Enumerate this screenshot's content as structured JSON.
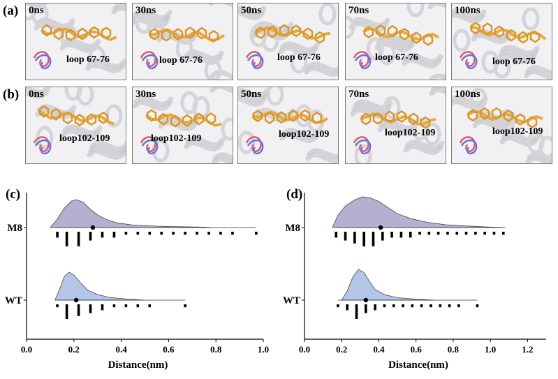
{
  "panels": {
    "a": "(a)",
    "b": "(b)",
    "c": "(c)",
    "d": "(d)"
  },
  "snapshots": {
    "row_a": {
      "loop_label": "loop 67-76",
      "times": [
        "0ns",
        "30ns",
        "50ns",
        "70ns",
        "100ns"
      ]
    },
    "row_b": {
      "loop_label": "loop102-109",
      "times": [
        "0ns",
        "30ns",
        "50ns",
        "70ns",
        "100ns"
      ]
    }
  },
  "colors": {
    "m8_fill": "#b7afd0",
    "wt_fill": "#b3c6e8",
    "ligand": "#e8a93c",
    "loop_red": "#e05a6a",
    "loop_blue": "#6a74d8"
  },
  "chart_data": [
    {
      "type": "violin-raincloud",
      "panel": "(c)",
      "xlabel": "Distance(nm)",
      "xlim": [
        0.0,
        1.0
      ],
      "xticks": [
        "0.0",
        "0.2",
        "0.4",
        "0.6",
        "0.8",
        "1.0"
      ],
      "categories": [
        "M8",
        "WT"
      ],
      "series": [
        {
          "name": "M8",
          "mean": 0.28,
          "min": 0.12,
          "max": 0.97,
          "density": [
            [
              0.1,
              0.0
            ],
            [
              0.13,
              0.3
            ],
            [
              0.16,
              0.7
            ],
            [
              0.19,
              0.95
            ],
            [
              0.21,
              1.0
            ],
            [
              0.24,
              0.9
            ],
            [
              0.27,
              0.65
            ],
            [
              0.3,
              0.45
            ],
            [
              0.34,
              0.28
            ],
            [
              0.38,
              0.17
            ],
            [
              0.45,
              0.09
            ],
            [
              0.55,
              0.05
            ],
            [
              0.65,
              0.03
            ],
            [
              0.75,
              0.015
            ],
            [
              0.78,
              0.0
            ]
          ],
          "points": [
            [
              0.13,
              2
            ],
            [
              0.17,
              5
            ],
            [
              0.22,
              5
            ],
            [
              0.27,
              3
            ],
            [
              0.32,
              2
            ],
            [
              0.37,
              2
            ],
            [
              0.42,
              1
            ],
            [
              0.47,
              1
            ],
            [
              0.52,
              1
            ],
            [
              0.57,
              1
            ],
            [
              0.62,
              1
            ],
            [
              0.67,
              1
            ],
            [
              0.72,
              1
            ],
            [
              0.77,
              1
            ],
            [
              0.82,
              1
            ],
            [
              0.87,
              1
            ],
            [
              0.97,
              1
            ]
          ]
        },
        {
          "name": "WT",
          "mean": 0.21,
          "min": 0.13,
          "max": 0.67,
          "density": [
            [
              0.12,
              0.0
            ],
            [
              0.14,
              0.4
            ],
            [
              0.16,
              0.85
            ],
            [
              0.18,
              1.0
            ],
            [
              0.2,
              0.9
            ],
            [
              0.23,
              0.6
            ],
            [
              0.26,
              0.35
            ],
            [
              0.3,
              0.2
            ],
            [
              0.35,
              0.1
            ],
            [
              0.42,
              0.04
            ],
            [
              0.5,
              0.0
            ]
          ],
          "points": [
            [
              0.13,
              1
            ],
            [
              0.17,
              5
            ],
            [
              0.22,
              4
            ],
            [
              0.27,
              3
            ],
            [
              0.32,
              2
            ],
            [
              0.37,
              1
            ],
            [
              0.42,
              1
            ],
            [
              0.47,
              1
            ],
            [
              0.52,
              1
            ],
            [
              0.67,
              1
            ]
          ]
        }
      ]
    },
    {
      "type": "violin-raincloud",
      "panel": "(d)",
      "xlabel": "Distance(nm)",
      "xlim": [
        0.0,
        1.3
      ],
      "xticks": [
        "0.0",
        "0.2",
        "0.4",
        "0.6",
        "0.8",
        "1.0",
        "1.2"
      ],
      "categories": [
        "M8",
        "WT"
      ],
      "series": [
        {
          "name": "M8",
          "mean": 0.41,
          "min": 0.17,
          "max": 1.07,
          "density": [
            [
              0.15,
              0.0
            ],
            [
              0.18,
              0.4
            ],
            [
              0.22,
              0.7
            ],
            [
              0.27,
              0.9
            ],
            [
              0.31,
              1.0
            ],
            [
              0.35,
              0.97
            ],
            [
              0.4,
              0.85
            ],
            [
              0.45,
              0.65
            ],
            [
              0.5,
              0.45
            ],
            [
              0.58,
              0.28
            ],
            [
              0.66,
              0.17
            ],
            [
              0.76,
              0.09
            ],
            [
              0.88,
              0.05
            ],
            [
              0.98,
              0.02
            ],
            [
              1.08,
              0.0
            ]
          ],
          "points": [
            [
              0.17,
              2
            ],
            [
              0.22,
              3
            ],
            [
              0.27,
              4
            ],
            [
              0.32,
              5
            ],
            [
              0.37,
              5
            ],
            [
              0.42,
              3
            ],
            [
              0.47,
              2
            ],
            [
              0.52,
              2
            ],
            [
              0.57,
              2
            ],
            [
              0.62,
              1
            ],
            [
              0.67,
              1
            ],
            [
              0.72,
              1
            ],
            [
              0.77,
              1
            ],
            [
              0.82,
              1
            ],
            [
              0.87,
              1
            ],
            [
              0.92,
              1
            ],
            [
              0.97,
              1
            ],
            [
              1.02,
              1
            ],
            [
              1.07,
              1
            ]
          ]
        },
        {
          "name": "WT",
          "mean": 0.33,
          "min": 0.18,
          "max": 0.93,
          "density": [
            [
              0.2,
              0.0
            ],
            [
              0.23,
              0.3
            ],
            [
              0.26,
              0.75
            ],
            [
              0.29,
              1.0
            ],
            [
              0.32,
              0.9
            ],
            [
              0.35,
              0.6
            ],
            [
              0.38,
              0.35
            ],
            [
              0.43,
              0.18
            ],
            [
              0.5,
              0.08
            ],
            [
              0.6,
              0.03
            ],
            [
              0.7,
              0.0
            ]
          ],
          "points": [
            [
              0.18,
              1
            ],
            [
              0.23,
              2
            ],
            [
              0.28,
              5
            ],
            [
              0.33,
              3
            ],
            [
              0.38,
              2
            ],
            [
              0.43,
              1
            ],
            [
              0.48,
              1
            ],
            [
              0.53,
              1
            ],
            [
              0.58,
              1
            ],
            [
              0.63,
              1
            ],
            [
              0.68,
              1
            ],
            [
              0.73,
              1
            ],
            [
              0.78,
              1
            ],
            [
              0.83,
              1
            ],
            [
              0.93,
              1
            ]
          ]
        }
      ]
    }
  ]
}
